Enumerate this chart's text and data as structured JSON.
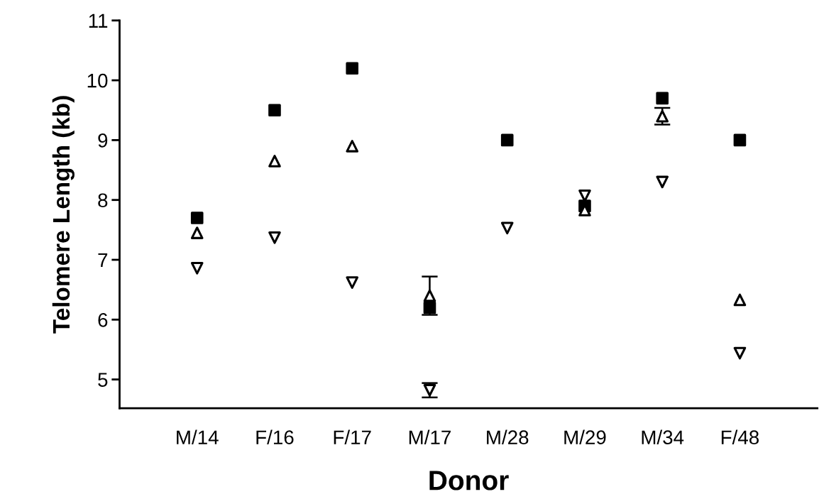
{
  "chart_data": {
    "type": "scatter",
    "xlabel": "Donor",
    "ylabel": "Telomere Length (kb)",
    "categories": [
      "M/14",
      "F/16",
      "F/17",
      "M/17",
      "M/28",
      "M/29",
      "M/34",
      "F/48"
    ],
    "ylim": [
      4.52,
      11
    ],
    "yticks": [
      5,
      6,
      7,
      8,
      9,
      10,
      11
    ],
    "grid": false,
    "series": [
      {
        "color": "#000000",
        "marker": "square",
        "values": [
          7.7,
          9.5,
          10.2,
          6.2,
          9.0,
          7.9,
          9.7,
          9.0
        ]
      },
      {
        "color": "#000000",
        "marker": "triangle",
        "values": [
          7.45,
          8.65,
          8.9,
          6.4,
          null,
          7.83,
          9.4,
          6.33
        ],
        "errors": [
          null,
          null,
          null,
          0.32,
          null,
          null,
          0.14,
          null
        ]
      },
      {
        "color": "#000000",
        "marker": "triangle-down",
        "values": [
          6.86,
          7.37,
          6.62,
          4.82,
          7.53,
          8.07,
          8.3,
          5.44
        ],
        "errors": [
          null,
          null,
          null,
          0.12,
          null,
          null,
          null,
          null
        ]
      }
    ]
  }
}
